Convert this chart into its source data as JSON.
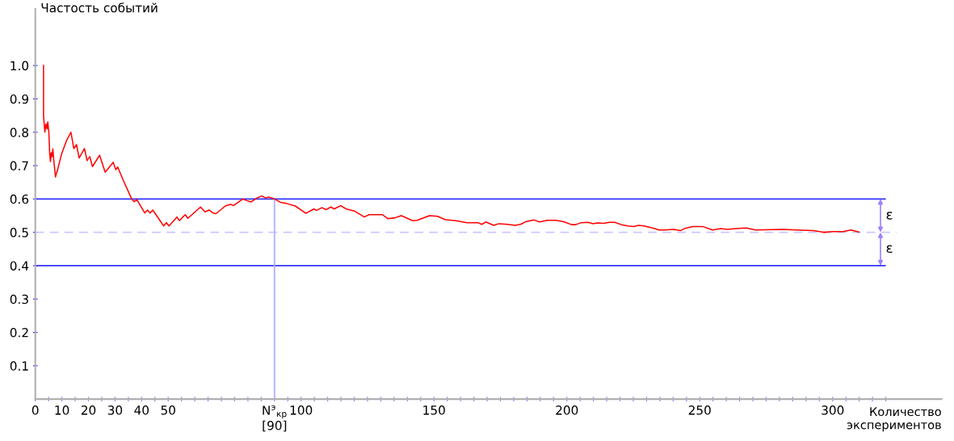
{
  "chart_data": {
    "type": "line",
    "ylabel": "Частость событий",
    "xlabel": "Количество\nэкспериментов",
    "xlim": [
      0,
      341
    ],
    "ylim": [
      0,
      1.17
    ],
    "xticks": [
      0,
      {
        "value": 5,
        "label": null
      },
      10,
      {
        "value": 15,
        "label": null
      },
      20,
      {
        "value": 25,
        "label": null
      },
      30,
      {
        "value": 35,
        "label": null
      },
      40,
      {
        "value": 45,
        "label": null
      },
      50,
      {
        "value": 55,
        "label": null
      },
      {
        "value": 60,
        "label": null
      },
      {
        "value": 65,
        "label": null
      },
      {
        "value": 70,
        "label": null
      },
      {
        "value": 75,
        "label": null
      },
      {
        "value": 80,
        "label": null
      },
      {
        "value": 85,
        "label": null
      },
      {
        "value": 90,
        "label": "N$^{э}$$_{кр}$\n[90]"
      },
      {
        "value": 95,
        "label": null
      },
      100,
      {
        "value": 105,
        "label": null
      },
      {
        "value": 110,
        "label": null
      },
      {
        "value": 115,
        "label": null
      },
      {
        "value": 120,
        "label": null
      },
      {
        "value": 125,
        "label": null
      },
      {
        "value": 130,
        "label": null
      },
      {
        "value": 135,
        "label": null
      },
      {
        "value": 140,
        "label": null
      },
      {
        "value": 145,
        "label": null
      },
      150,
      {
        "value": 155,
        "label": null
      },
      {
        "value": 160,
        "label": null
      },
      {
        "value": 165,
        "label": null
      },
      {
        "value": 170,
        "label": null
      },
      {
        "value": 175,
        "label": null
      },
      {
        "value": 180,
        "label": null
      },
      {
        "value": 185,
        "label": null
      },
      {
        "value": 190,
        "label": null
      },
      {
        "value": 195,
        "label": null
      },
      200,
      {
        "value": 205,
        "label": null
      },
      {
        "value": 210,
        "label": null
      },
      {
        "value": 215,
        "label": null
      },
      {
        "value": 220,
        "label": null
      },
      {
        "value": 225,
        "label": null
      },
      {
        "value": 230,
        "label": null
      },
      {
        "value": 235,
        "label": null
      },
      {
        "value": 240,
        "label": null
      },
      {
        "value": 245,
        "label": null
      },
      250,
      {
        "value": 255,
        "label": null
      },
      {
        "value": 260,
        "label": null
      },
      {
        "value": 265,
        "label": null
      },
      {
        "value": 270,
        "label": null
      },
      {
        "value": 275,
        "label": null
      },
      {
        "value": 280,
        "label": null
      },
      {
        "value": 285,
        "label": null
      },
      {
        "value": 290,
        "label": null
      },
      {
        "value": 295,
        "label": null
      },
      300,
      {
        "value": 305,
        "label": null
      },
      {
        "value": 310,
        "label": null
      },
      {
        "value": 315,
        "label": null
      },
      {
        "value": 320,
        "label": null
      }
    ],
    "yticks": [
      0.1,
      0.2,
      0.3,
      0.4,
      0.5,
      0.6,
      0.7,
      0.8,
      0.9,
      {
        "value": 1.0,
        "label": "1.0"
      }
    ],
    "grid": false,
    "legend": false,
    "marker": "none",
    "line_style": "solid",
    "ref_lines": [
      {
        "axis": "y",
        "value": 0.6,
        "label": null,
        "color": "#3333ff",
        "line_style": "solid"
      },
      {
        "axis": "y",
        "value": 0.4,
        "label": null,
        "color": "#3333ff",
        "line_style": "solid"
      },
      {
        "axis": "y",
        "value": 0.5,
        "label": null,
        "color": "#c8c8ff",
        "line_style": "dashed"
      },
      {
        "axis": "x",
        "value": 90,
        "label": null,
        "color": "#b0b0ff",
        "line_style": "solid"
      }
    ],
    "annotations": [
      {
        "text": "ε",
        "x": 318,
        "y": 0.6
      },
      {
        "text": "ε",
        "x": 318,
        "y": 0.4
      }
    ],
    "series": [
      {
        "color": "#ff0000",
        "x": [
          3.1,
          3.1,
          3.6,
          4.0,
          4.4,
          4.7,
          5.1,
          5.4,
          5.7,
          6.0,
          6.3,
          6.6,
          7.0,
          7.6,
          8.4,
          9.9,
          11.7,
          13.4,
          14.5,
          15.5,
          16.5,
          18.5,
          19.5,
          20.5,
          21.5,
          24.2,
          26.3,
          29.3,
          30.3,
          31.0,
          33.1,
          36.2,
          37.2,
          38.2,
          41.2,
          42.2,
          43.2,
          44.2,
          48.3,
          49.3,
          50.3,
          53.3,
          54.2,
          56.4,
          57.4,
          62.2,
          63.9,
          65.4,
          66.8,
          68.0,
          71.5,
          73.5,
          74.5,
          78.1,
          79.6,
          81.1,
          83.4,
          85.2,
          86.7,
          87.7,
          90.0,
          92.2,
          94.7,
          97.8,
          101.8,
          104.8,
          105.8,
          107.9,
          109.4,
          111.2,
          112.4,
          114.9,
          117.0,
          120.0,
          123.8,
          125.6,
          130.6,
          132.6,
          135.1,
          137.7,
          141.9,
          143.7,
          148.3,
          151.3,
          154.3,
          158.3,
          162.4,
          166.5,
          168.0,
          169.5,
          172.5,
          174.5,
          177.6,
          180.6,
          182.6,
          184.6,
          187.7,
          189.7,
          192.7,
          195.8,
          198.8,
          201.8,
          203.3,
          205.4,
          207.9,
          209.9,
          211.4,
          213.9,
          216.0,
          218.0,
          220.5,
          223.0,
          225.2,
          227.0,
          229.1,
          233.1,
          234.6,
          236.6,
          240.2,
          242.7,
          244.2,
          247.3,
          251.3,
          254.8,
          257.9,
          260.4,
          263.4,
          267.5,
          271.0,
          281.1,
          286.7,
          292.7,
          296.8,
          299.8,
          303.9,
          306.9,
          309.9
        ],
        "values": [
          1.0,
          0.85,
          0.8,
          0.825,
          0.81,
          0.831,
          0.8,
          0.739,
          0.712,
          0.739,
          0.727,
          0.75,
          0.712,
          0.666,
          0.688,
          0.735,
          0.774,
          0.8,
          0.751,
          0.763,
          0.723,
          0.751,
          0.715,
          0.727,
          0.697,
          0.731,
          0.68,
          0.71,
          0.688,
          0.696,
          0.656,
          0.601,
          0.592,
          0.598,
          0.558,
          0.567,
          0.558,
          0.567,
          0.519,
          0.529,
          0.519,
          0.546,
          0.535,
          0.553,
          0.542,
          0.576,
          0.561,
          0.567,
          0.558,
          0.556,
          0.579,
          0.584,
          0.58,
          0.6,
          0.595,
          0.591,
          0.603,
          0.609,
          0.603,
          0.606,
          0.6,
          0.59,
          0.586,
          0.579,
          0.557,
          0.57,
          0.566,
          0.574,
          0.568,
          0.576,
          0.57,
          0.58,
          0.57,
          0.564,
          0.546,
          0.553,
          0.553,
          0.541,
          0.543,
          0.55,
          0.535,
          0.536,
          0.55,
          0.548,
          0.538,
          0.535,
          0.529,
          0.529,
          0.524,
          0.531,
          0.521,
          0.526,
          0.524,
          0.521,
          0.524,
          0.532,
          0.537,
          0.531,
          0.536,
          0.536,
          0.532,
          0.523,
          0.523,
          0.529,
          0.53,
          0.526,
          0.528,
          0.527,
          0.53,
          0.53,
          0.523,
          0.519,
          0.517,
          0.521,
          0.519,
          0.511,
          0.507,
          0.507,
          0.509,
          0.505,
          0.511,
          0.517,
          0.517,
          0.507,
          0.511,
          0.509,
          0.511,
          0.513,
          0.507,
          0.509,
          0.507,
          0.505,
          0.5,
          0.502,
          0.502,
          0.507,
          0.501
        ]
      }
    ]
  }
}
